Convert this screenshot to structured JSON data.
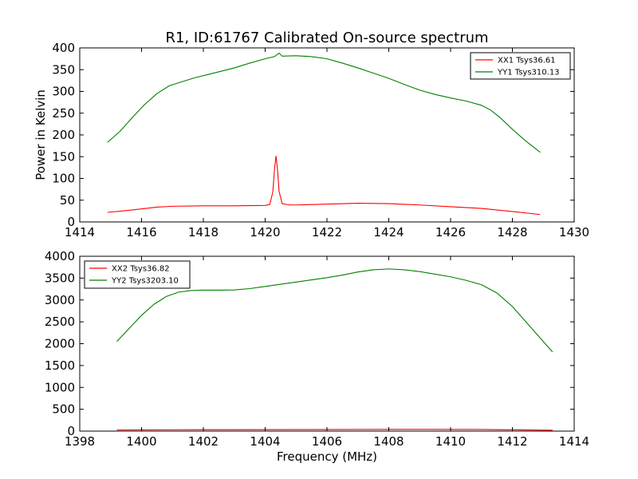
{
  "chart_data": [
    {
      "type": "line",
      "title": "R1, ID:61767 Calibrated On-source spectrum",
      "xlabel": "",
      "ylabel": "Power in Kelvin",
      "xlim": [
        1414,
        1430
      ],
      "ylim": [
        0,
        400
      ],
      "xticks": [
        1414,
        1416,
        1418,
        1420,
        1422,
        1424,
        1426,
        1428,
        1430
      ],
      "yticks": [
        0,
        50,
        100,
        150,
        200,
        250,
        300,
        350,
        400
      ],
      "legend_position": "top-right",
      "series": [
        {
          "name": "XX1 Tsys36.61",
          "color": "#ff0000",
          "points": [
            [
              1414.9,
              22
            ],
            [
              1415.5,
              26
            ],
            [
              1416.0,
              30
            ],
            [
              1416.5,
              34
            ],
            [
              1417.0,
              36
            ],
            [
              1418.0,
              37
            ],
            [
              1419.0,
              37
            ],
            [
              1420.0,
              38
            ],
            [
              1420.15,
              40
            ],
            [
              1420.25,
              70
            ],
            [
              1420.3,
              120
            ],
            [
              1420.35,
              152
            ],
            [
              1420.4,
              120
            ],
            [
              1420.45,
              70
            ],
            [
              1420.55,
              42
            ],
            [
              1420.8,
              39
            ],
            [
              1421.0,
              39
            ],
            [
              1422.0,
              41
            ],
            [
              1423.0,
              43
            ],
            [
              1424.0,
              42
            ],
            [
              1425.0,
              39
            ],
            [
              1426.0,
              35
            ],
            [
              1427.0,
              31
            ],
            [
              1428.0,
              24
            ],
            [
              1428.9,
              17
            ]
          ]
        },
        {
          "name": "YY1 Tsys310.13",
          "color": "#008000",
          "points": [
            [
              1414.9,
              183
            ],
            [
              1415.3,
              208
            ],
            [
              1415.7,
              240
            ],
            [
              1416.1,
              270
            ],
            [
              1416.5,
              295
            ],
            [
              1416.9,
              313
            ],
            [
              1417.3,
              322
            ],
            [
              1417.7,
              331
            ],
            [
              1418.1,
              338
            ],
            [
              1418.5,
              345
            ],
            [
              1419.0,
              354
            ],
            [
              1419.5,
              365
            ],
            [
              1420.0,
              375
            ],
            [
              1420.3,
              380
            ],
            [
              1420.45,
              388
            ],
            [
              1420.55,
              381
            ],
            [
              1421.0,
              382
            ],
            [
              1421.5,
              380
            ],
            [
              1422.0,
              375
            ],
            [
              1422.5,
              365
            ],
            [
              1423.0,
              354
            ],
            [
              1423.5,
              342
            ],
            [
              1424.0,
              330
            ],
            [
              1424.5,
              316
            ],
            [
              1425.0,
              303
            ],
            [
              1425.5,
              293
            ],
            [
              1426.0,
              285
            ],
            [
              1426.5,
              278
            ],
            [
              1427.0,
              268
            ],
            [
              1427.3,
              257
            ],
            [
              1427.6,
              240
            ],
            [
              1428.0,
              213
            ],
            [
              1428.4,
              188
            ],
            [
              1428.9,
              160
            ]
          ]
        }
      ]
    },
    {
      "type": "line",
      "title": "",
      "xlabel": "Frequency (MHz)",
      "ylabel": "",
      "xlim": [
        1398,
        1414
      ],
      "ylim": [
        0,
        4000
      ],
      "xticks": [
        1398,
        1400,
        1402,
        1404,
        1406,
        1408,
        1410,
        1412,
        1414
      ],
      "yticks": [
        0,
        500,
        1000,
        1500,
        2000,
        2500,
        3000,
        3500,
        4000
      ],
      "legend_position": "top-left",
      "series": [
        {
          "name": "XX2 Tsys36.82",
          "color": "#ff0000",
          "points": [
            [
              1399.2,
              25
            ],
            [
              1401.0,
              32
            ],
            [
              1403.0,
              34
            ],
            [
              1405.0,
              35
            ],
            [
              1407.0,
              37
            ],
            [
              1409.0,
              40
            ],
            [
              1411.0,
              38
            ],
            [
              1412.0,
              30
            ],
            [
              1413.3,
              20
            ]
          ]
        },
        {
          "name": "YY2 Tsys3203.10",
          "color": "#008000",
          "points": [
            [
              1399.2,
              2050
            ],
            [
              1399.6,
              2350
            ],
            [
              1400.0,
              2650
            ],
            [
              1400.4,
              2900
            ],
            [
              1400.8,
              3080
            ],
            [
              1401.2,
              3180
            ],
            [
              1401.6,
              3215
            ],
            [
              1402.0,
              3225
            ],
            [
              1402.5,
              3225
            ],
            [
              1403.0,
              3230
            ],
            [
              1403.5,
              3260
            ],
            [
              1404.0,
              3310
            ],
            [
              1404.5,
              3360
            ],
            [
              1405.0,
              3410
            ],
            [
              1405.5,
              3460
            ],
            [
              1406.0,
              3510
            ],
            [
              1406.5,
              3570
            ],
            [
              1407.0,
              3640
            ],
            [
              1407.5,
              3690
            ],
            [
              1408.0,
              3710
            ],
            [
              1408.5,
              3690
            ],
            [
              1409.0,
              3650
            ],
            [
              1409.5,
              3590
            ],
            [
              1410.0,
              3530
            ],
            [
              1410.5,
              3450
            ],
            [
              1411.0,
              3350
            ],
            [
              1411.5,
              3160
            ],
            [
              1412.0,
              2850
            ],
            [
              1412.5,
              2450
            ],
            [
              1413.0,
              2050
            ],
            [
              1413.3,
              1810
            ]
          ]
        }
      ]
    }
  ]
}
